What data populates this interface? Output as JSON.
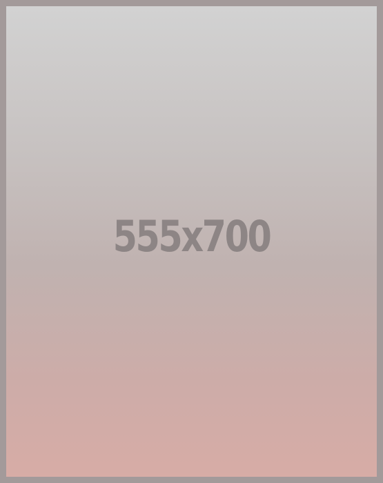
{
  "placeholder": {
    "dimensions_label": "555x700"
  }
}
